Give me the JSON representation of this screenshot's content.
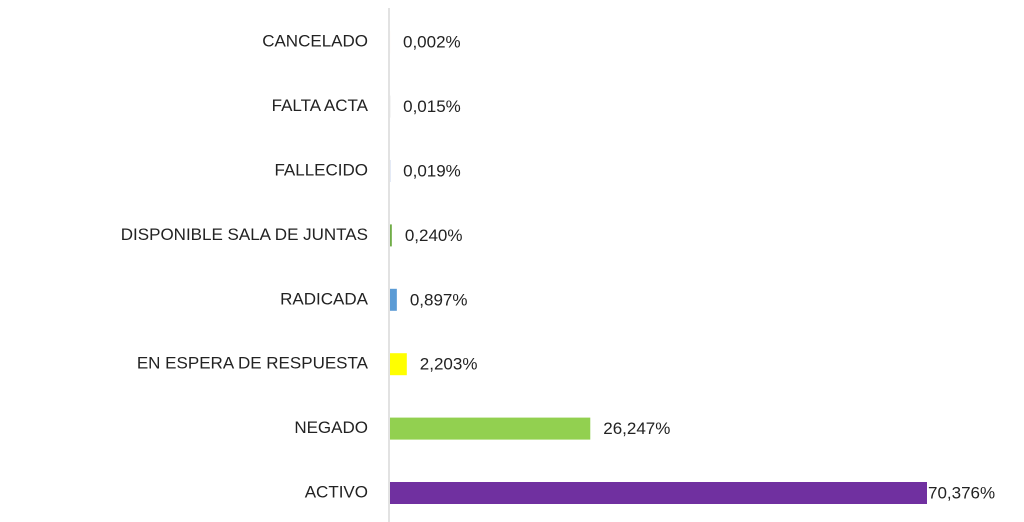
{
  "chart_data": {
    "type": "bar",
    "orientation": "horizontal",
    "categories": [
      "CANCELADO",
      "FALTA ACTA",
      "FALLECIDO",
      "DISPONIBLE SALA DE JUNTAS",
      "RADICADA",
      "EN ESPERA DE RESPUESTA",
      "NEGADO",
      "ACTIVO"
    ],
    "values": [
      0.002,
      0.015,
      0.019,
      0.24,
      0.897,
      2.203,
      26.247,
      70.376
    ],
    "value_labels": [
      "0,002%",
      "0,015%",
      "0,019%",
      "0,240%",
      "0,897%",
      "2,203%",
      "26,247%",
      "70,376%"
    ],
    "colors": [
      "#ed7d31",
      "#a5a5a5",
      "#4472c4",
      "#70ad47",
      "#5b9bd5",
      "#ffff00",
      "#92d050",
      "#7030a0"
    ]
  }
}
